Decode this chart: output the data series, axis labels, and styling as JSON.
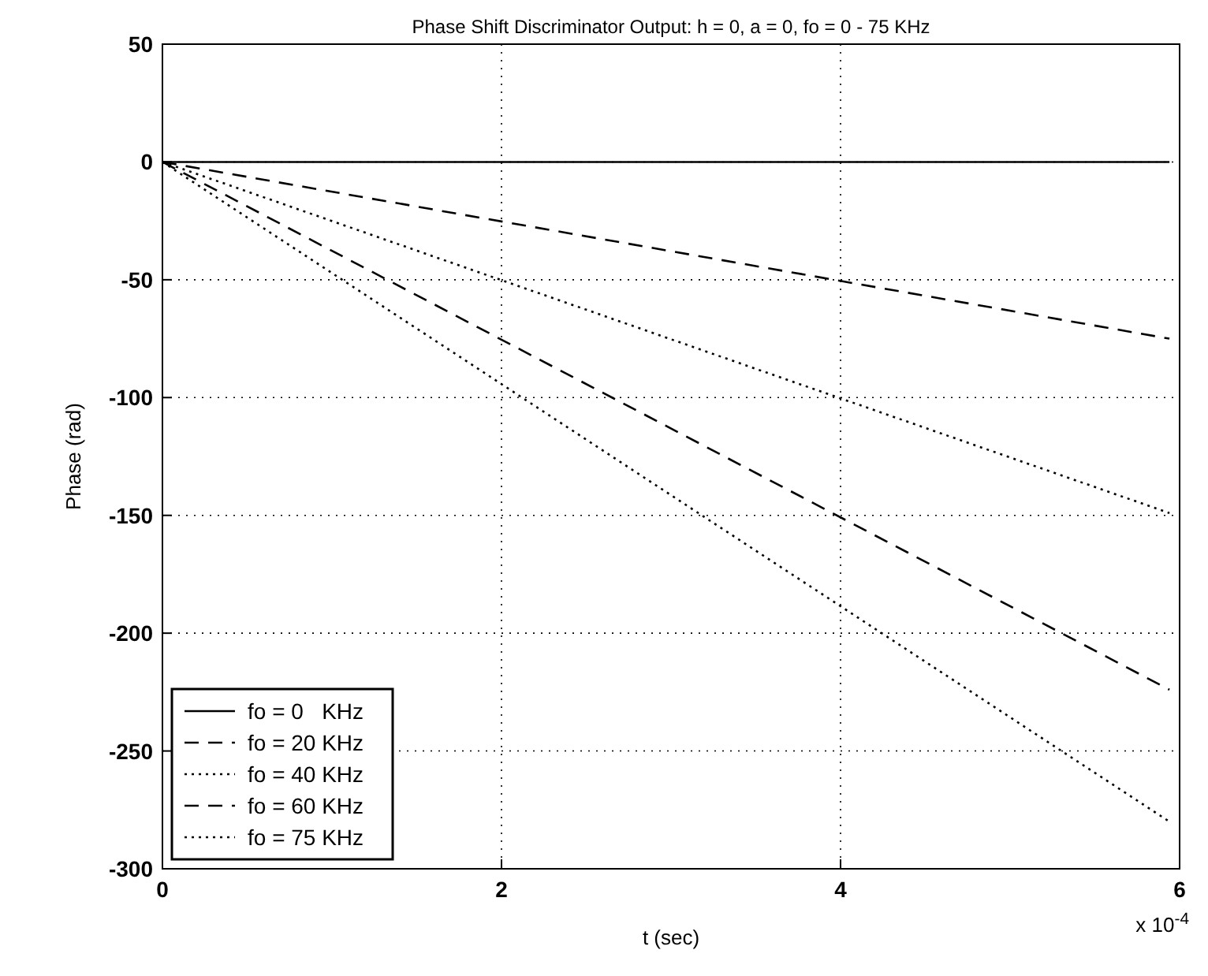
{
  "chart_data": {
    "type": "line",
    "title": "Phase Shift Discriminator Output: h = 0, a = 0, fo = 0 - 75 KHz",
    "xlabel": "t  (sec)",
    "ylabel": "Phase (rad)",
    "annotations": [
      "x 10$^{-4}$"
    ],
    "x": [
      0,
      5.94
    ],
    "xlim": [
      0,
      6
    ],
    "xticks": [
      0,
      2,
      4,
      6
    ],
    "ylim": [
      -300,
      50
    ],
    "yticks": [
      -300,
      -250,
      -200,
      -150,
      -100,
      -50,
      0,
      50
    ],
    "grid": true,
    "legend": "bottom left",
    "series": [
      {
        "name": "fo = 0   KHz",
        "color": "#000000",
        "line_style": "solid",
        "values": [
          0,
          0
        ]
      },
      {
        "name": "fo = 20 KHz",
        "color": "#000000",
        "line_style": "dashed",
        "values": [
          0,
          -75
        ]
      },
      {
        "name": "fo = 40 KHz",
        "color": "#000000",
        "line_style": "dotted",
        "values": [
          0,
          -149
        ]
      },
      {
        "name": "fo = 60 KHz",
        "color": "#000000",
        "line_style": "dashed",
        "values": [
          0,
          -224
        ]
      },
      {
        "name": "fo = 75 KHz",
        "color": "#000000",
        "line_style": "dotted",
        "values": [
          0,
          -280
        ]
      }
    ]
  }
}
